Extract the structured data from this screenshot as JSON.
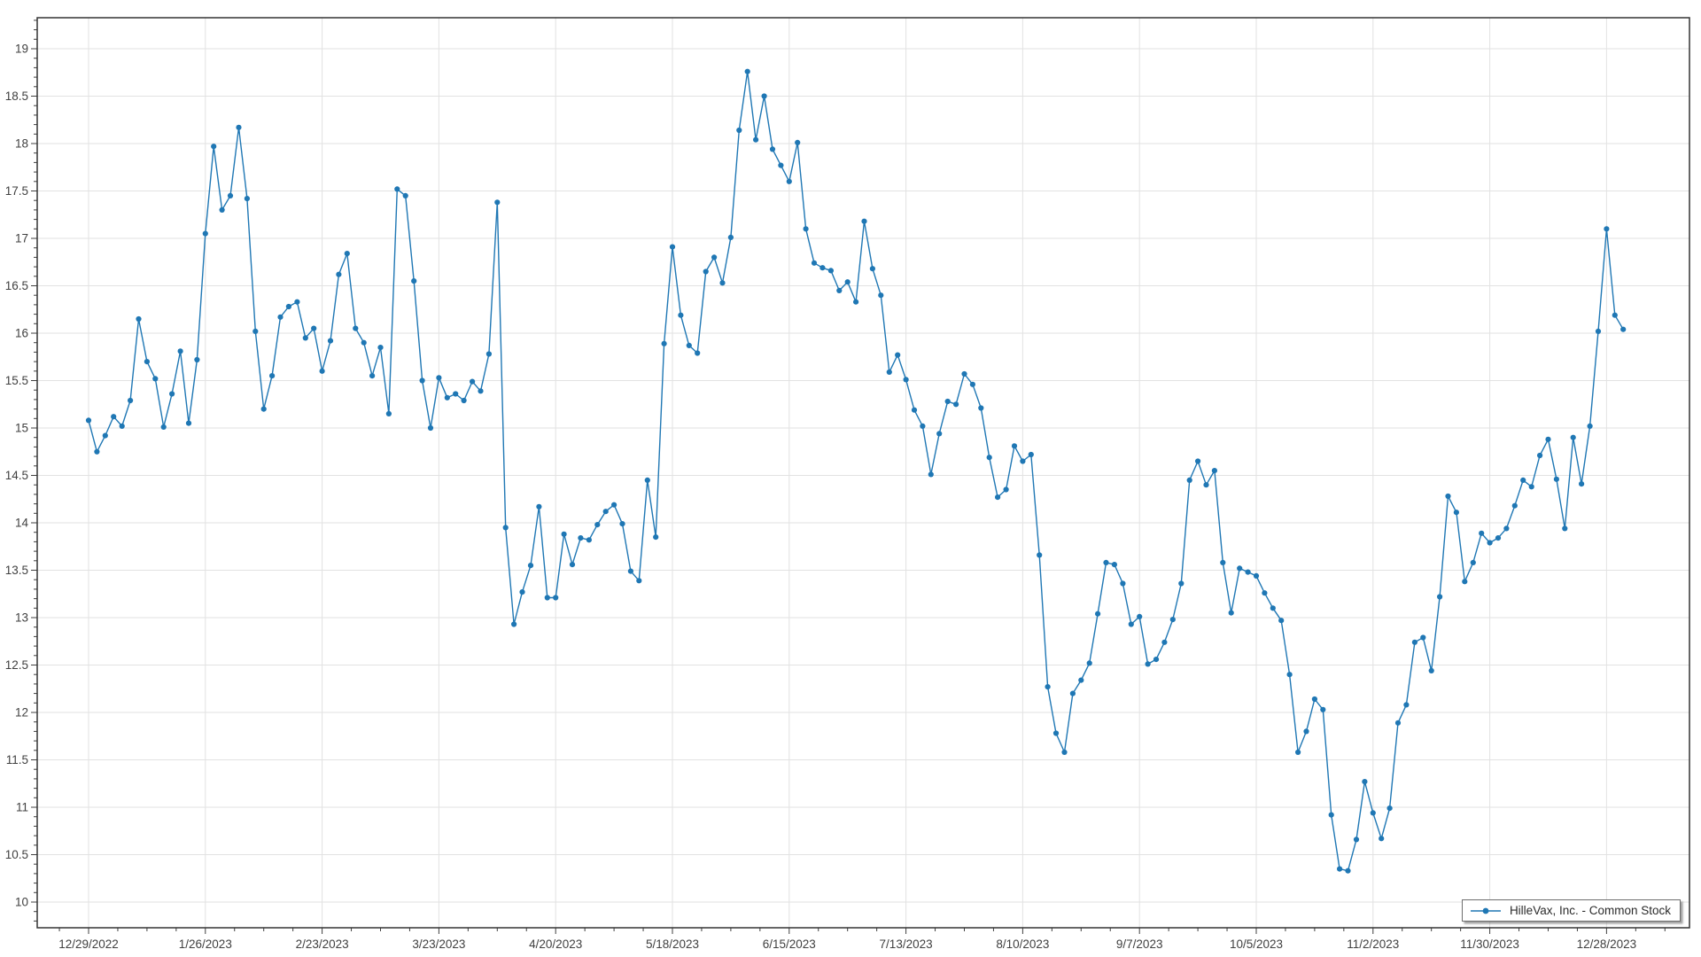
{
  "chart": {
    "line_color": "#1f77b4",
    "grid_color": "#e2e2e2",
    "frame_color": "#333333",
    "tick_color": "#404040",
    "label_color": "#404040",
    "background_color": "#ffffff",
    "legend": {
      "label": "HilleVax, Inc. - Common Stock",
      "position": "bottom-right"
    }
  },
  "chart_data": {
    "type": "line",
    "title": "",
    "xlabel": "",
    "ylabel": "",
    "grid": true,
    "legend_position": "bottom-right",
    "x_tick_labels": [
      "12/29/2022",
      "1/26/2023",
      "2/23/2023",
      "3/23/2023",
      "4/20/2023",
      "5/18/2023",
      "6/15/2023",
      "7/13/2023",
      "8/10/2023",
      "9/7/2023",
      "10/5/2023",
      "11/2/2023",
      "11/30/2023",
      "12/28/2023"
    ],
    "x_major_interval_days": 28,
    "x_minor_interval_days": 7,
    "y_tick_labels": [
      "10",
      "10.5",
      "11",
      "11.5",
      "12",
      "12.5",
      "13",
      "13.5",
      "14",
      "14.5",
      "15",
      "15.5",
      "16",
      "16.5",
      "17",
      "17.5",
      "18",
      "18.5",
      "19"
    ],
    "y_ticks": [
      10,
      10.5,
      11,
      11.5,
      12,
      12.5,
      13,
      13.5,
      14,
      14.5,
      15,
      15.5,
      16,
      16.5,
      17,
      17.5,
      18,
      18.5,
      19
    ],
    "y_minor_step": 0.1,
    "ylim": [
      9.73,
      19.33
    ],
    "series": [
      {
        "name": "HilleVax, Inc. - Common Stock",
        "start_date": "12/29/2022",
        "interval_days": 2,
        "marker": "circle",
        "values": [
          15.08,
          14.75,
          14.92,
          15.12,
          15.02,
          15.29,
          16.15,
          15.7,
          15.52,
          15.01,
          15.36,
          15.81,
          15.05,
          15.72,
          17.05,
          17.97,
          17.3,
          17.45,
          18.17,
          17.42,
          16.02,
          15.2,
          15.55,
          16.17,
          16.28,
          16.33,
          15.95,
          16.05,
          15.6,
          15.92,
          16.62,
          16.84,
          16.05,
          15.9,
          15.55,
          15.85,
          15.15,
          17.52,
          17.45,
          16.55,
          15.5,
          15.0,
          15.53,
          15.32,
          15.36,
          15.29,
          15.49,
          15.39,
          15.78,
          17.38,
          13.95,
          12.93,
          13.27,
          13.55,
          14.17,
          13.21,
          13.21,
          13.88,
          13.56,
          13.84,
          13.82,
          13.98,
          14.12,
          14.19,
          13.99,
          13.49,
          13.39,
          14.45,
          13.85,
          15.89,
          16.91,
          16.19,
          15.87,
          15.79,
          16.65,
          16.8,
          16.53,
          17.01,
          18.14,
          18.76,
          18.04,
          18.5,
          17.94,
          17.77,
          17.6,
          18.01,
          17.1,
          16.74,
          16.69,
          16.66,
          16.45,
          16.54,
          16.33,
          17.18,
          16.68,
          16.4,
          15.59,
          15.77,
          15.51,
          15.19,
          15.02,
          14.51,
          14.94,
          15.28,
          15.25,
          15.57,
          15.46,
          15.21,
          14.69,
          14.27,
          14.35,
          14.81,
          14.65,
          14.72,
          13.66,
          12.27,
          11.78,
          11.58,
          12.2,
          12.34,
          12.52,
          13.04,
          13.58,
          13.56,
          13.36,
          12.93,
          13.01,
          12.51,
          12.56,
          12.74,
          12.98,
          13.36,
          14.45,
          14.65,
          14.4,
          14.55,
          13.58,
          13.05,
          13.52,
          13.48,
          13.44,
          13.26,
          13.1,
          12.97,
          12.4,
          11.58,
          11.8,
          12.14,
          12.03,
          10.92,
          10.35,
          10.33,
          10.66,
          11.27,
          10.94,
          10.67,
          10.99,
          11.89,
          12.08,
          12.74,
          12.79,
          12.44,
          13.22,
          14.28,
          14.11,
          13.38,
          13.58,
          13.89,
          13.79,
          13.84,
          13.94,
          14.18,
          14.45,
          14.38,
          14.71,
          14.88,
          14.46,
          13.94,
          14.9,
          14.41,
          15.02,
          16.02,
          17.1,
          16.19,
          16.04
        ]
      }
    ]
  }
}
